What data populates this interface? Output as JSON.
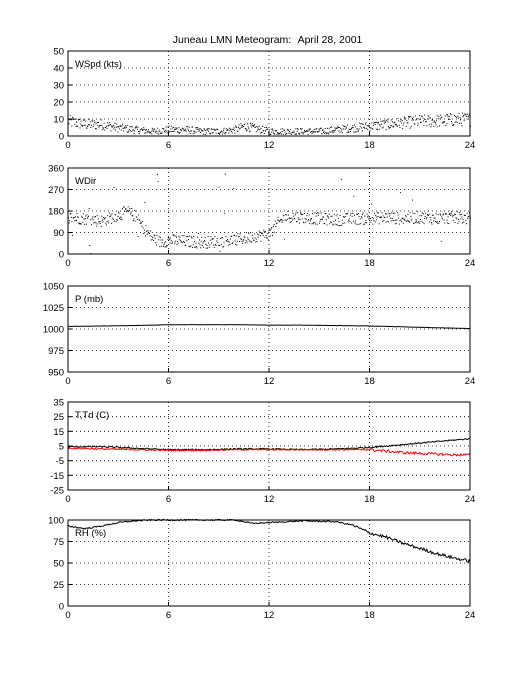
{
  "chart_data": {
    "title": "Juneau LMN Meteogram:",
    "date": "April 28, 2001",
    "x_ticks": [
      "0",
      "6",
      "12",
      "18",
      "24"
    ],
    "xlim": [
      0,
      24
    ],
    "grid": true,
    "panels": [
      {
        "id": "wspd",
        "type": "scatter",
        "label": "WSpd (kts)",
        "ylim": [
          0,
          50
        ],
        "y_ticks": [
          0,
          10,
          20,
          30,
          40,
          50
        ],
        "series": [
          {
            "style": "dots",
            "color": "#000000",
            "x": [
              0,
              1,
              2,
              3,
              4,
              5,
              6,
              7,
              8,
              9,
              10,
              10.5,
              11,
              12,
              13,
              14,
              15,
              16,
              17,
              18,
              19,
              20,
              21,
              22,
              23,
              24
            ],
            "y": [
              9,
              7,
              7,
              5,
              4,
              3,
              4,
              4,
              3,
              3,
              4,
              6,
              5,
              3,
              3,
              3,
              3,
              4,
              5,
              6,
              7,
              8,
              9,
              9,
              10,
              10
            ]
          }
        ]
      },
      {
        "id": "wdir",
        "type": "scatter",
        "label": "WDir",
        "ylim": [
          0,
          360
        ],
        "y_ticks": [
          0,
          90,
          180,
          270,
          360
        ],
        "series": [
          {
            "style": "dots",
            "color": "#000000",
            "x": [
              0,
              1,
              2,
              3,
              3.5,
              4,
              4.5,
              5,
              5.5,
              6,
              7,
              8,
              9,
              10,
              11,
              12,
              12.5,
              13,
              14,
              15,
              16,
              17,
              18,
              19,
              20,
              21,
              22,
              23,
              24
            ],
            "y": [
              155,
              150,
              140,
              165,
              180,
              160,
              110,
              70,
              50,
              60,
              55,
              50,
              55,
              60,
              75,
              85,
              130,
              160,
              155,
              150,
              145,
              150,
              150,
              155,
              150,
              155,
              150,
              155,
              150
            ]
          }
        ]
      },
      {
        "id": "p",
        "type": "line",
        "label": "P (mb)",
        "ylim": [
          950,
          1050
        ],
        "y_ticks": [
          950,
          975,
          1000,
          1025,
          1050
        ],
        "series": [
          {
            "style": "line",
            "color": "#000000",
            "x": [
              0,
              2,
              4,
              6,
              8,
              10,
              12,
              14,
              16,
              18,
              20,
              22,
              24
            ],
            "y": [
              1003,
              1003.5,
              1004,
              1005,
              1005,
              1005,
              1004.5,
              1004.5,
              1004,
              1003.5,
              1002.5,
              1001.5,
              1000.5
            ]
          }
        ]
      },
      {
        "id": "ttd",
        "type": "line",
        "label": "T,Td (C)",
        "ylim": [
          -25,
          35
        ],
        "y_ticks": [
          -25,
          -15,
          -5,
          5,
          15,
          25,
          35
        ],
        "series": [
          {
            "style": "line",
            "color": "#000000",
            "x": [
              0,
              2,
              4,
              6,
              8,
              10,
              12,
              14,
              16,
              17,
              18,
              19,
              20,
              21,
              22,
              23,
              24
            ],
            "y": [
              4.5,
              4.5,
              3.5,
              2.5,
              2.5,
              3,
              3,
              2.5,
              3,
              3.5,
              4,
              5,
              6,
              7,
              8,
              9,
              10
            ]
          },
          {
            "style": "line",
            "color": "#ff0000",
            "x": [
              0,
              2,
              4,
              6,
              8,
              10,
              12,
              14,
              16,
              17,
              18,
              19,
              20,
              21,
              22,
              23,
              24
            ],
            "y": [
              3.5,
              3,
              2.5,
              2,
              2,
              2.5,
              2.5,
              2.5,
              2.5,
              2.5,
              2.5,
              1.5,
              0.5,
              0,
              -0.5,
              -1,
              -1
            ]
          }
        ]
      },
      {
        "id": "rh",
        "type": "line",
        "label": "RH (%)",
        "ylim": [
          0,
          100
        ],
        "y_ticks": [
          0,
          25,
          50,
          75,
          100
        ],
        "series": [
          {
            "style": "line",
            "color": "#000000",
            "x": [
              0,
              1,
              2,
              3,
              4,
              5,
              6,
              8,
              10,
              11,
              12,
              14,
              16,
              17,
              18,
              19,
              20,
              21,
              22,
              23,
              24
            ],
            "y": [
              93,
              90,
              93,
              97,
              99,
              100,
              100,
              100,
              100,
              96,
              97,
              99,
              98,
              94,
              85,
              80,
              73,
              67,
              61,
              56,
              52
            ]
          }
        ]
      }
    ]
  }
}
